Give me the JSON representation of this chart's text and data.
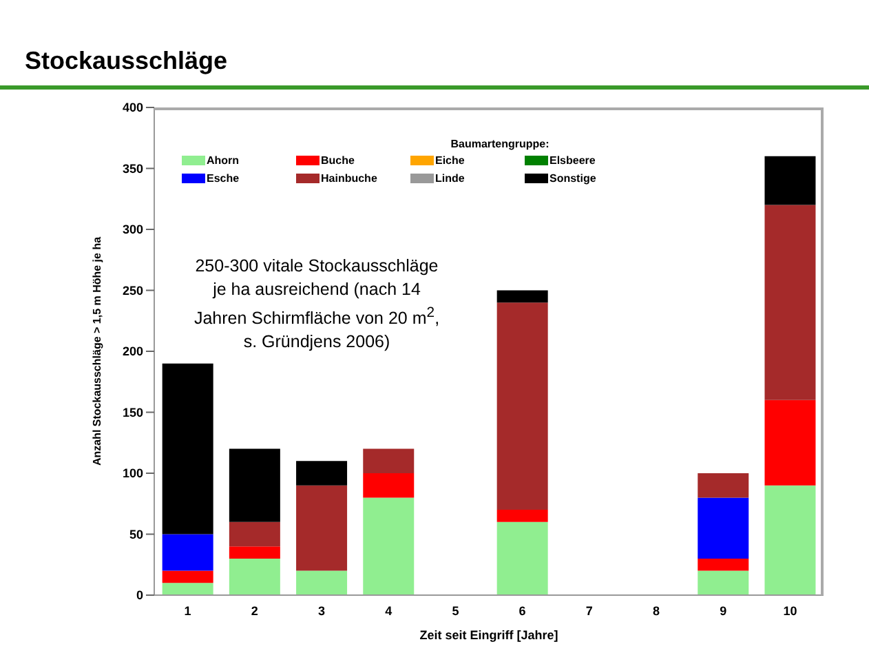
{
  "chart_data": {
    "type": "bar",
    "title": "Stockausschläge",
    "xlabel": "Zeit seit Eingriff [Jahre]",
    "ylabel": "Anzahl Stockausschläge > 1,5 m Höhe je ha",
    "legend_title": "Baumartengruppe:",
    "categories": [
      "1",
      "2",
      "3",
      "4",
      "5",
      "6",
      "7",
      "8",
      "9",
      "10"
    ],
    "stacked": true,
    "series": [
      {
        "name": "Ahorn",
        "color": "#90ee90",
        "values": [
          10,
          30,
          20,
          80,
          0,
          60,
          0,
          0,
          20,
          90
        ]
      },
      {
        "name": "Buche",
        "color": "#ff0000",
        "values": [
          10,
          10,
          0,
          20,
          0,
          10,
          0,
          0,
          10,
          70
        ]
      },
      {
        "name": "Eiche",
        "color": "#ffa500",
        "values": [
          0,
          0,
          0,
          0,
          0,
          0,
          0,
          0,
          0,
          0
        ]
      },
      {
        "name": "Elsbeere",
        "color": "#008000",
        "values": [
          0,
          0,
          0,
          0,
          0,
          0,
          0,
          0,
          0,
          0
        ]
      },
      {
        "name": "Esche",
        "color": "#0000ff",
        "values": [
          30,
          0,
          0,
          0,
          0,
          0,
          0,
          0,
          50,
          0
        ]
      },
      {
        "name": "Hainbuche",
        "color": "#a52a2a",
        "values": [
          0,
          20,
          70,
          20,
          0,
          170,
          0,
          0,
          20,
          160
        ]
      },
      {
        "name": "Linde",
        "color": "#999999",
        "values": [
          0,
          0,
          0,
          0,
          0,
          0,
          0,
          0,
          0,
          0
        ]
      },
      {
        "name": "Sonstige",
        "color": "#000000",
        "values": [
          140,
          60,
          20,
          0,
          0,
          10,
          0,
          0,
          0,
          40
        ]
      }
    ],
    "ylim": [
      0,
      400
    ],
    "yticks": [
      0,
      50,
      100,
      150,
      200,
      250,
      300,
      350,
      400
    ],
    "grid": false,
    "legend": "top",
    "annotations": [
      "250-300 vitale Stockausschläge je ha ausreichend (nach 14 Jahren Schirmfläche von 20 m$^{2}$, s. Gründjens 2006)"
    ]
  }
}
